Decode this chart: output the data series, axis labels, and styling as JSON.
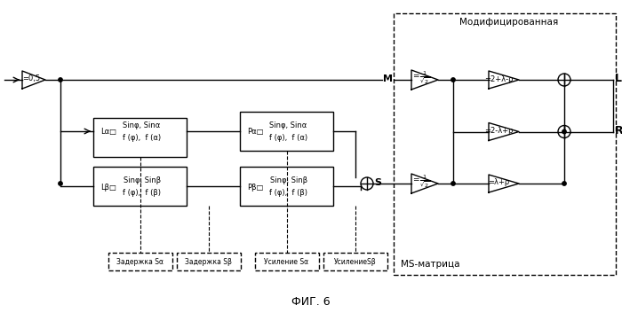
{
  "title": "ФИГ. 6",
  "bg_color": "#ffffff",
  "fig_width": 7.0,
  "fig_height": 3.53,
  "dpi": 100,
  "modified_box_label": "Модифицированная",
  "ms_matrix_label": "MS-матрица",
  "M_label": "M",
  "S_label": "S",
  "L_label": "L",
  "R_label": "R",
  "amp_05_label": "=0,5",
  "gain1_label": "=2+λ-ρ",
  "gain2_label": "=2-λ+ρ",
  "gain3_label": "=λ+ρ",
  "label_delay_Sa": "Задержка Sα",
  "label_delay_Sb": "Задержка Sβ",
  "label_gain_Sa": "Усиление Sα",
  "label_gain_Sb": "УсилениеSβ"
}
